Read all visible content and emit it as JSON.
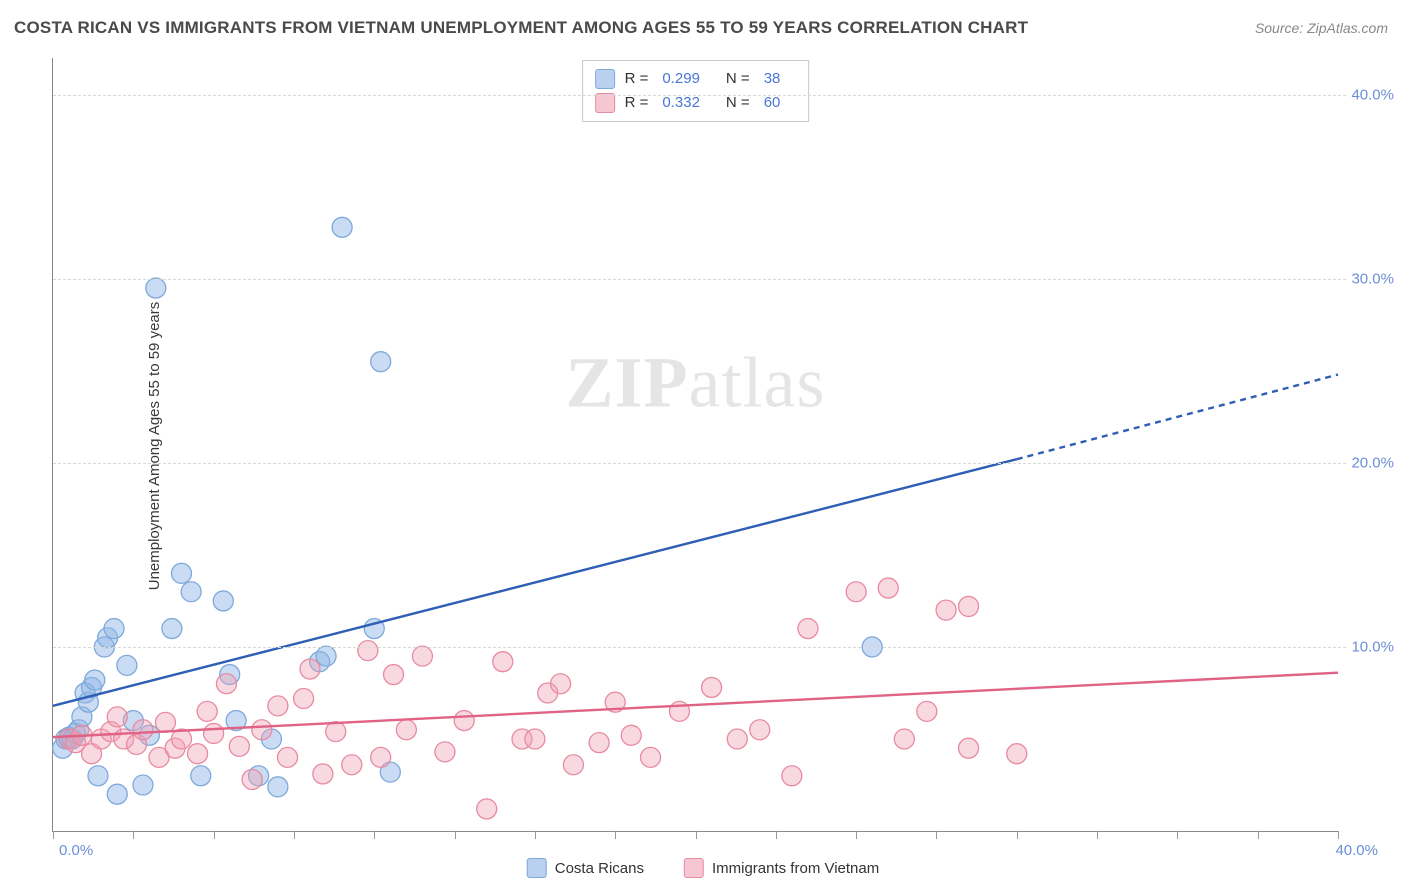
{
  "title": "COSTA RICAN VS IMMIGRANTS FROM VIETNAM UNEMPLOYMENT AMONG AGES 55 TO 59 YEARS CORRELATION CHART",
  "source": "Source: ZipAtlas.com",
  "y_axis_label": "Unemployment Among Ages 55 to 59 years",
  "watermark": {
    "zip": "ZIP",
    "atlas": "atlas"
  },
  "chart": {
    "type": "scatter-with-regression",
    "xlim": [
      0,
      40
    ],
    "ylim": [
      0,
      42
    ],
    "x_tick_label_start": "0.0%",
    "x_tick_label_end": "40.0%",
    "y_ticks": [
      {
        "v": 10,
        "label": "10.0%"
      },
      {
        "v": 20,
        "label": "20.0%"
      },
      {
        "v": 30,
        "label": "30.0%"
      },
      {
        "v": 40,
        "label": "40.0%"
      }
    ],
    "x_tick_positions": [
      0,
      2.5,
      5,
      7.5,
      10,
      12.5,
      15,
      17.5,
      20,
      22.5,
      25,
      27.5,
      30,
      32.5,
      35,
      37.5,
      40
    ],
    "grid_color": "#d8d8d8",
    "background_color": "#ffffff",
    "marker_radius": 10,
    "marker_stroke_width": 1.3,
    "line_width": 2.4,
    "series": [
      {
        "name": "Costa Ricans",
        "fill": "rgba(144,182,230,0.48)",
        "stroke": "#7ea9db",
        "line_color": "#2f5fb5",
        "swatch_fill": "#b9d0ee",
        "swatch_border": "#7ea9db",
        "R": "0.299",
        "N": "38",
        "points": [
          [
            0.3,
            4.5
          ],
          [
            0.4,
            5.0
          ],
          [
            0.5,
            5.1
          ],
          [
            0.6,
            5.0
          ],
          [
            0.7,
            5.3
          ],
          [
            0.8,
            5.5
          ],
          [
            0.9,
            6.2
          ],
          [
            1.0,
            7.5
          ],
          [
            1.1,
            7.0
          ],
          [
            1.2,
            7.8
          ],
          [
            1.3,
            8.2
          ],
          [
            1.4,
            3.0
          ],
          [
            1.6,
            10.0
          ],
          [
            1.7,
            10.5
          ],
          [
            1.9,
            11.0
          ],
          [
            2.0,
            2.0
          ],
          [
            2.3,
            9.0
          ],
          [
            2.5,
            6.0
          ],
          [
            2.8,
            2.5
          ],
          [
            3.0,
            5.2
          ],
          [
            3.2,
            29.5
          ],
          [
            3.7,
            11.0
          ],
          [
            4.0,
            14.0
          ],
          [
            4.3,
            13.0
          ],
          [
            4.6,
            3.0
          ],
          [
            5.3,
            12.5
          ],
          [
            5.5,
            8.5
          ],
          [
            5.7,
            6.0
          ],
          [
            6.4,
            3.0
          ],
          [
            6.8,
            5.0
          ],
          [
            7.0,
            2.4
          ],
          [
            8.3,
            9.2
          ],
          [
            8.5,
            9.5
          ],
          [
            9.0,
            32.8
          ],
          [
            10.0,
            11.0
          ],
          [
            10.2,
            25.5
          ],
          [
            10.5,
            3.2
          ],
          [
            25.5,
            10.0
          ]
        ],
        "regression": {
          "x1": 0,
          "y1": 6.8,
          "x2_solid": 30,
          "y2_solid": 20.2,
          "x2": 40,
          "y2": 24.8
        }
      },
      {
        "name": "Immigrants from Vietnam",
        "fill": "rgba(240,160,180,0.40)",
        "stroke": "#e88aa0",
        "line_color": "#e06284",
        "swatch_fill": "#f6c6d2",
        "swatch_border": "#e88aa0",
        "R": "0.332",
        "N": "60",
        "points": [
          [
            0.5,
            5.0
          ],
          [
            0.7,
            4.8
          ],
          [
            0.9,
            5.2
          ],
          [
            1.2,
            4.2
          ],
          [
            1.5,
            5.0
          ],
          [
            1.8,
            5.4
          ],
          [
            2.0,
            6.2
          ],
          [
            2.2,
            5.0
          ],
          [
            2.6,
            4.7
          ],
          [
            2.8,
            5.5
          ],
          [
            3.3,
            4.0
          ],
          [
            3.5,
            5.9
          ],
          [
            3.8,
            4.5
          ],
          [
            4.0,
            5.0
          ],
          [
            4.5,
            4.2
          ],
          [
            4.8,
            6.5
          ],
          [
            5.0,
            5.3
          ],
          [
            5.4,
            8.0
          ],
          [
            5.8,
            4.6
          ],
          [
            6.2,
            2.8
          ],
          [
            6.5,
            5.5
          ],
          [
            7.0,
            6.8
          ],
          [
            7.3,
            4.0
          ],
          [
            7.8,
            7.2
          ],
          [
            8.0,
            8.8
          ],
          [
            8.4,
            3.1
          ],
          [
            8.8,
            5.4
          ],
          [
            9.3,
            3.6
          ],
          [
            9.8,
            9.8
          ],
          [
            10.2,
            4.0
          ],
          [
            10.6,
            8.5
          ],
          [
            11.0,
            5.5
          ],
          [
            11.5,
            9.5
          ],
          [
            12.2,
            4.3
          ],
          [
            12.8,
            6.0
          ],
          [
            13.5,
            1.2
          ],
          [
            14.0,
            9.2
          ],
          [
            14.6,
            5.0
          ],
          [
            15.4,
            7.5
          ],
          [
            15.8,
            8.0
          ],
          [
            16.2,
            3.6
          ],
          [
            17.0,
            4.8
          ],
          [
            17.5,
            7.0
          ],
          [
            18.0,
            5.2
          ],
          [
            18.6,
            4.0
          ],
          [
            19.5,
            6.5
          ],
          [
            20.5,
            7.8
          ],
          [
            21.3,
            5.0
          ],
          [
            22.0,
            5.5
          ],
          [
            23.0,
            3.0
          ],
          [
            23.5,
            11.0
          ],
          [
            25.0,
            13.0
          ],
          [
            26.5,
            5.0
          ],
          [
            27.2,
            6.5
          ],
          [
            27.8,
            12.0
          ],
          [
            28.5,
            4.5
          ],
          [
            30.0,
            4.2
          ],
          [
            26.0,
            13.2
          ],
          [
            28.5,
            12.2
          ],
          [
            15.0,
            5.0
          ]
        ],
        "regression": {
          "x1": 0,
          "y1": 5.1,
          "x2_solid": 40,
          "y2_solid": 8.6,
          "x2": 40,
          "y2": 8.6
        }
      }
    ]
  },
  "legend_corr_labels": {
    "R": "R =",
    "N": "N ="
  },
  "bottom_legend": [
    {
      "label": "Costa Ricans"
    },
    {
      "label": "Immigrants from Vietnam"
    }
  ]
}
